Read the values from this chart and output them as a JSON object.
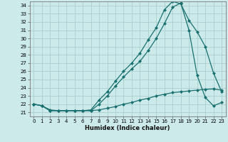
{
  "xlabel": "Humidex (Indice chaleur)",
  "xlim": [
    -0.5,
    23.5
  ],
  "ylim": [
    20.5,
    34.5
  ],
  "yticks": [
    21,
    22,
    23,
    24,
    25,
    26,
    27,
    28,
    29,
    30,
    31,
    32,
    33,
    34
  ],
  "xticks": [
    0,
    1,
    2,
    3,
    4,
    5,
    6,
    7,
    8,
    9,
    10,
    11,
    12,
    13,
    14,
    15,
    16,
    17,
    18,
    19,
    20,
    21,
    22,
    23
  ],
  "background_color": "#cceaea",
  "grid_color": "#aacece",
  "line_color": "#1a7070",
  "line1_x": [
    0,
    1,
    2,
    3,
    4,
    5,
    6,
    7,
    8,
    9,
    10,
    11,
    12,
    13,
    14,
    15,
    16,
    17,
    18,
    19,
    20,
    21,
    22,
    23
  ],
  "line1_y": [
    22.0,
    21.8,
    21.3,
    21.2,
    21.2,
    21.2,
    21.2,
    21.2,
    21.3,
    21.5,
    21.7,
    22.0,
    22.2,
    22.5,
    22.7,
    23.0,
    23.2,
    23.4,
    23.5,
    23.6,
    23.7,
    23.8,
    23.85,
    23.7
  ],
  "line2_x": [
    0,
    1,
    2,
    3,
    4,
    5,
    6,
    7,
    8,
    9,
    10,
    11,
    12,
    13,
    14,
    15,
    16,
    17,
    18,
    19,
    20,
    21,
    22,
    23
  ],
  "line2_y": [
    22.0,
    21.8,
    21.2,
    21.2,
    21.2,
    21.2,
    21.2,
    21.3,
    22.5,
    23.5,
    24.8,
    26.0,
    27.0,
    28.2,
    29.8,
    31.3,
    33.5,
    34.5,
    34.2,
    32.2,
    30.8,
    29.0,
    25.8,
    23.5
  ],
  "line3_x": [
    0,
    1,
    2,
    3,
    4,
    5,
    6,
    7,
    8,
    9,
    10,
    11,
    12,
    13,
    14,
    15,
    16,
    17,
    18,
    19,
    20,
    21,
    22,
    23
  ],
  "line3_y": [
    22.0,
    21.8,
    21.2,
    21.2,
    21.2,
    21.2,
    21.2,
    21.2,
    22.0,
    23.0,
    24.2,
    25.3,
    26.3,
    27.2,
    28.5,
    30.0,
    31.8,
    33.8,
    34.3,
    31.0,
    25.5,
    22.8,
    21.8,
    22.2
  ]
}
